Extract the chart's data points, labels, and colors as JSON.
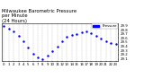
{
  "title": "Milwaukee Barometric Pressure\nper Minute\n(24 Hours)",
  "line_color": "#0000ff",
  "bg_color": "#ffffff",
  "grid_color": "#b0b0b0",
  "legend_label": "Pressure",
  "legend_color": "#0000ff",
  "x_values": [
    0,
    1,
    2,
    3,
    4,
    5,
    6,
    7,
    8,
    9,
    10,
    11,
    12,
    13,
    14,
    15,
    16,
    17,
    18,
    19,
    20,
    21,
    22,
    23
  ],
  "y_values": [
    29.88,
    29.82,
    29.75,
    29.65,
    29.52,
    29.38,
    29.22,
    29.13,
    29.1,
    29.18,
    29.28,
    29.4,
    29.52,
    29.62,
    29.67,
    29.7,
    29.73,
    29.75,
    29.72,
    29.65,
    29.58,
    29.53,
    29.48,
    29.45
  ],
  "ylim": [
    29.05,
    29.95
  ],
  "xlim": [
    -0.5,
    23.5
  ],
  "ytick_values": [
    29.1,
    29.2,
    29.3,
    29.4,
    29.5,
    29.6,
    29.7,
    29.8,
    29.9
  ],
  "xtick_values": [
    0,
    1,
    2,
    3,
    4,
    5,
    6,
    7,
    8,
    9,
    10,
    11,
    12,
    13,
    14,
    15,
    16,
    17,
    18,
    19,
    20,
    21,
    22,
    23
  ],
  "title_fontsize": 3.8,
  "tick_fontsize": 2.8,
  "marker_size": 1.5
}
